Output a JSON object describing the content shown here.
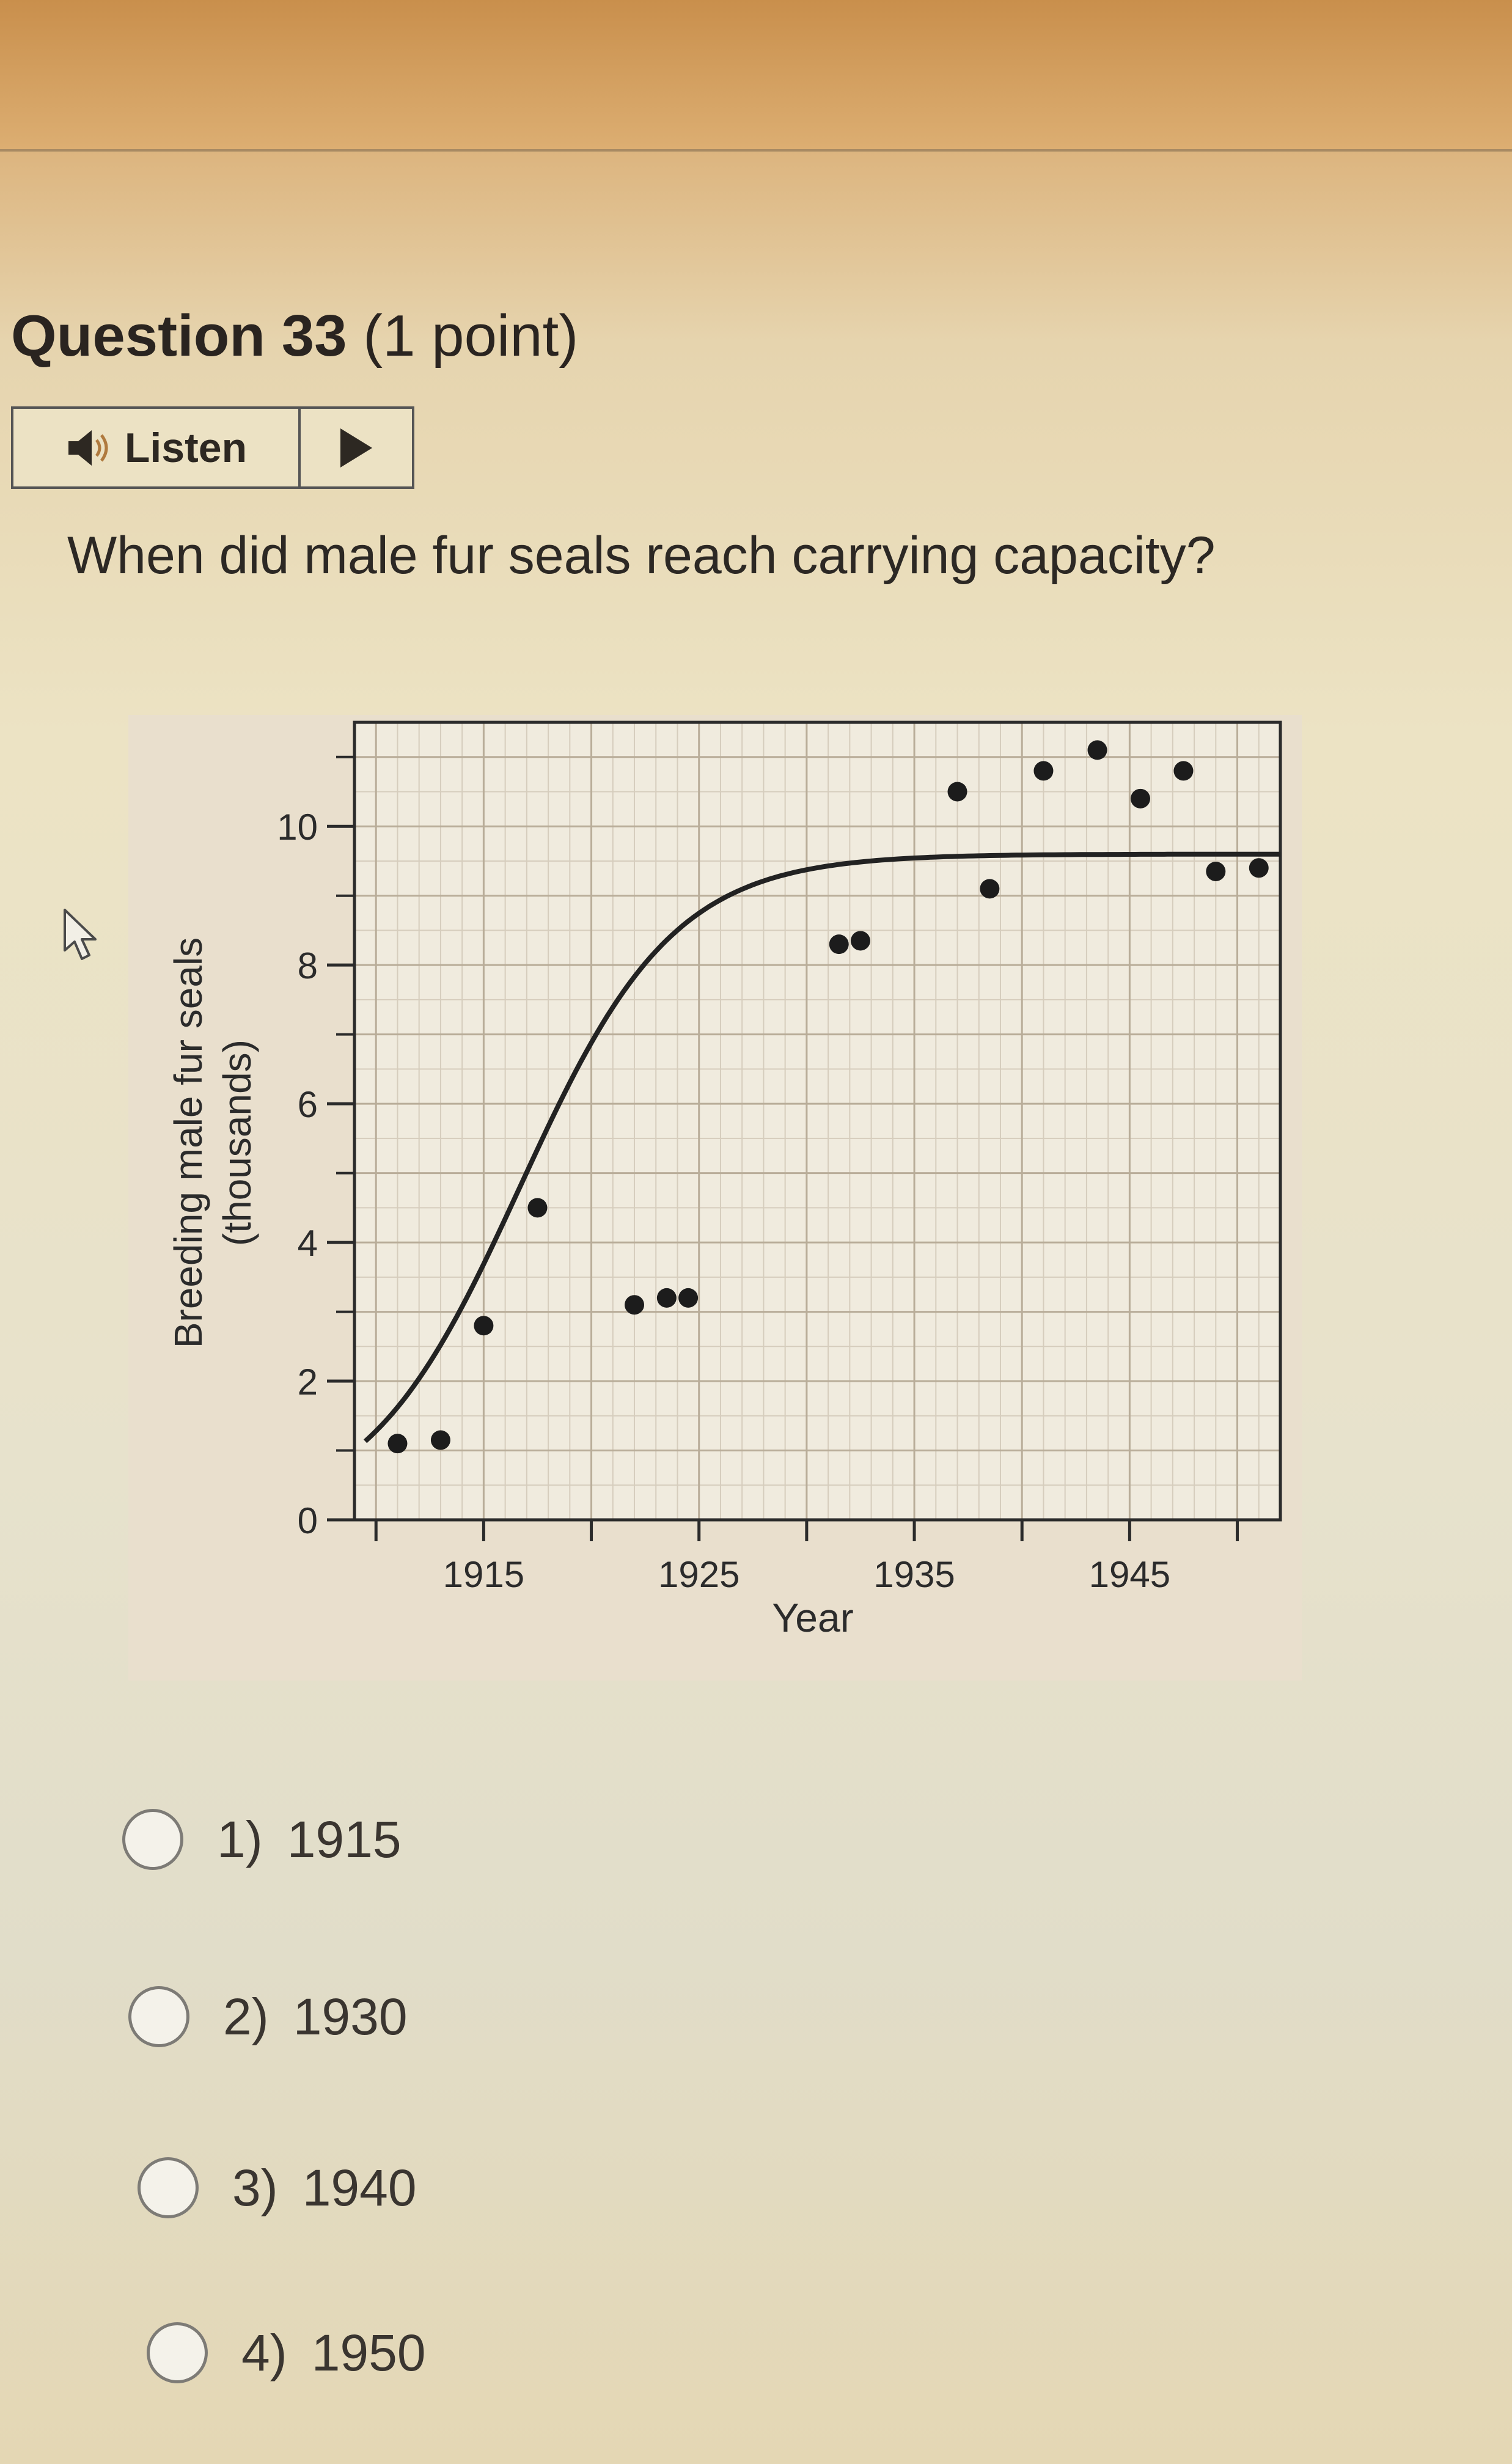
{
  "question": {
    "title": "Question 33",
    "points": "(1 point)",
    "text": "When did male fur seals reach carrying capacity?"
  },
  "listen": {
    "label": "Listen",
    "speaker_icon": "speaker-icon",
    "play_icon": "play-icon"
  },
  "cursor": {
    "icon": "mouse-pointer-icon"
  },
  "choices": [
    {
      "num": "1)",
      "label": "1915"
    },
    {
      "num": "2)",
      "label": "1930"
    },
    {
      "num": "3)",
      "label": "1940"
    },
    {
      "num": "4)",
      "label": "1950"
    }
  ],
  "chart_data": {
    "type": "scatter",
    "ylabel_line1": "Breeding male fur seals",
    "ylabel_line2": "(thousands)",
    "xlabel": "Year",
    "xlim": [
      1909,
      1952
    ],
    "ylim": [
      0,
      11.5
    ],
    "xticks": [
      1915,
      1925,
      1935,
      1945
    ],
    "xtick_labels": [
      "1915",
      "1925",
      "1935",
      "1945"
    ],
    "yticks": [
      0,
      2,
      4,
      6,
      8,
      10
    ],
    "ytick_labels": [
      "0",
      "2",
      "4",
      "6",
      "8",
      "10"
    ],
    "grid": true,
    "points": [
      {
        "x": 1911,
        "y": 1.1
      },
      {
        "x": 1913,
        "y": 1.15
      },
      {
        "x": 1915,
        "y": 2.8
      },
      {
        "x": 1917.5,
        "y": 4.5
      },
      {
        "x": 1922,
        "y": 3.1
      },
      {
        "x": 1923.5,
        "y": 3.2
      },
      {
        "x": 1924.5,
        "y": 3.2
      },
      {
        "x": 1931.5,
        "y": 8.3
      },
      {
        "x": 1932.5,
        "y": 8.35
      },
      {
        "x": 1937,
        "y": 10.5
      },
      {
        "x": 1938.5,
        "y": 9.1
      },
      {
        "x": 1941,
        "y": 10.8
      },
      {
        "x": 1943.5,
        "y": 11.1
      },
      {
        "x": 1945.5,
        "y": 10.4
      },
      {
        "x": 1947.5,
        "y": 10.8
      },
      {
        "x": 1949,
        "y": 9.35
      },
      {
        "x": 1951,
        "y": 9.4
      }
    ],
    "curve": {
      "type": "logistic",
      "K": 9.6,
      "N0": 1.0,
      "r": 0.28,
      "x0": 1909,
      "x_range": [
        1909.5,
        1952
      ]
    }
  }
}
